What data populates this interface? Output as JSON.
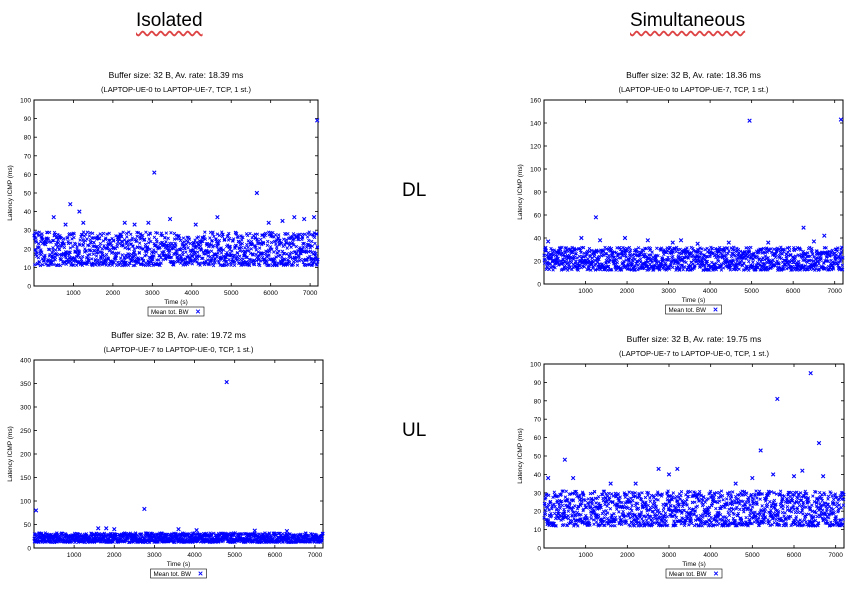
{
  "headers": {
    "left": "Isolated",
    "right": "Simultaneous"
  },
  "row_labels": {
    "dl": "DL",
    "ul": "UL"
  },
  "chart_data": [
    {
      "id": "dl-isolated",
      "type": "scatter",
      "title": "Buffer size: 32 B, Av. rate: 18.39 ms",
      "subtitle": "(LAPTOP-UE-0 to LAPTOP-UE-7, TCP, 1 st.)",
      "xlabel": "Time (s)",
      "ylabel": "Latency ICMP (ms)",
      "xlim": [
        0,
        7200
      ],
      "ylim": [
        0,
        100
      ],
      "xticks": [
        1000,
        2000,
        3000,
        4000,
        5000,
        6000,
        7000
      ],
      "yticks": [
        0,
        10,
        20,
        30,
        40,
        50,
        60,
        70,
        80,
        90,
        100
      ],
      "legend": {
        "label": "Mean tot. BW",
        "marker": "×",
        "position": "bottom-center"
      },
      "color": "#0000ff",
      "band": {
        "low": 11,
        "high": 29,
        "count": 1300
      },
      "outliers": [
        [
          500,
          37
        ],
        [
          800,
          33
        ],
        [
          920,
          44
        ],
        [
          1150,
          40
        ],
        [
          1250,
          34
        ],
        [
          2300,
          34
        ],
        [
          2550,
          33
        ],
        [
          2900,
          34
        ],
        [
          3050,
          61
        ],
        [
          3450,
          36
        ],
        [
          4100,
          33
        ],
        [
          4650,
          37
        ],
        [
          5650,
          50
        ],
        [
          5950,
          34
        ],
        [
          6300,
          35
        ],
        [
          6600,
          37
        ],
        [
          6850,
          36
        ],
        [
          7100,
          37
        ],
        [
          7180,
          89
        ]
      ]
    },
    {
      "id": "dl-simultaneous",
      "type": "scatter",
      "title": "Buffer size: 32 B, Av. rate: 18.36 ms",
      "subtitle": "(LAPTOP-UE-0 to LAPTOP-UE-7, TCP, 1 st.)",
      "xlabel": "Time (s)",
      "ylabel": "Latency ICMP (ms)",
      "xlim": [
        0,
        7200
      ],
      "ylim": [
        0,
        160
      ],
      "xticks": [
        1000,
        2000,
        3000,
        4000,
        5000,
        6000,
        7000
      ],
      "yticks": [
        0,
        20,
        40,
        60,
        80,
        100,
        120,
        140,
        160
      ],
      "legend": {
        "label": "Mean tot. BW",
        "marker": "×",
        "position": "bottom-center"
      },
      "color": "#0000ff",
      "band": {
        "low": 12,
        "high": 32,
        "count": 1300
      },
      "outliers": [
        [
          100,
          37
        ],
        [
          900,
          40
        ],
        [
          1250,
          58
        ],
        [
          1350,
          38
        ],
        [
          1950,
          40
        ],
        [
          2500,
          38
        ],
        [
          3100,
          36
        ],
        [
          3300,
          38
        ],
        [
          3700,
          35
        ],
        [
          4450,
          36
        ],
        [
          4950,
          142
        ],
        [
          5400,
          36
        ],
        [
          6250,
          49
        ],
        [
          6500,
          37
        ],
        [
          6750,
          42
        ],
        [
          7150,
          143
        ]
      ]
    },
    {
      "id": "ul-isolated",
      "type": "scatter",
      "title": "Buffer size: 32 B, Av. rate: 19.72 ms",
      "subtitle": "(LAPTOP-UE-7 to LAPTOP-UE-0, TCP, 1 st.)",
      "xlabel": "Time (s)",
      "ylabel": "Latency ICMP (ms)",
      "xlim": [
        0,
        7200
      ],
      "ylim": [
        0,
        400
      ],
      "xticks": [
        1000,
        2000,
        3000,
        4000,
        5000,
        6000,
        7000
      ],
      "yticks": [
        0,
        50,
        100,
        150,
        200,
        250,
        300,
        350,
        400
      ],
      "legend": {
        "label": "Mean tot. BW",
        "marker": "×",
        "position": "bottom-center"
      },
      "color": "#0000ff",
      "band": {
        "low": 12,
        "high": 32,
        "count": 1300
      },
      "outliers": [
        [
          50,
          80
        ],
        [
          1600,
          42
        ],
        [
          1800,
          42
        ],
        [
          2000,
          40
        ],
        [
          2750,
          83
        ],
        [
          3600,
          40
        ],
        [
          4050,
          38
        ],
        [
          4800,
          353
        ],
        [
          5500,
          37
        ],
        [
          6300,
          36
        ]
      ]
    },
    {
      "id": "ul-simultaneous",
      "type": "scatter",
      "title": "Buffer size: 32 B, Av. rate: 19.75 ms",
      "subtitle": "(LAPTOP-UE-7 to LAPTOP-UE-0, TCP, 1 st.)",
      "xlabel": "Time (s)",
      "ylabel": "Latency ICMP (ms)",
      "xlim": [
        0,
        7200
      ],
      "ylim": [
        0,
        100
      ],
      "xticks": [
        1000,
        2000,
        3000,
        4000,
        5000,
        6000,
        7000
      ],
      "yticks": [
        0,
        10,
        20,
        30,
        40,
        50,
        60,
        70,
        80,
        90,
        100
      ],
      "legend": {
        "label": "Mean tot. BW",
        "marker": "×",
        "position": "bottom-center"
      },
      "color": "#0000ff",
      "band": {
        "low": 12,
        "high": 31,
        "count": 1400
      },
      "outliers": [
        [
          100,
          38
        ],
        [
          500,
          48
        ],
        [
          700,
          38
        ],
        [
          1600,
          35
        ],
        [
          2200,
          35
        ],
        [
          2750,
          43
        ],
        [
          3000,
          40
        ],
        [
          3200,
          43
        ],
        [
          4600,
          35
        ],
        [
          5000,
          38
        ],
        [
          5200,
          53
        ],
        [
          5500,
          40
        ],
        [
          5600,
          81
        ],
        [
          6000,
          39
        ],
        [
          6200,
          42
        ],
        [
          6400,
          95
        ],
        [
          6600,
          57
        ],
        [
          6700,
          39
        ]
      ]
    }
  ]
}
